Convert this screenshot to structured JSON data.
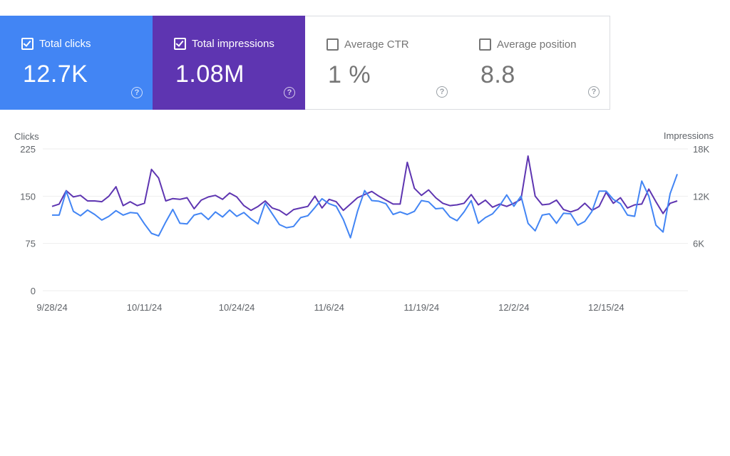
{
  "metrics": [
    {
      "key": "clicks",
      "label": "Total clicks",
      "value": "12.7K",
      "checked": true,
      "color": "#4285f4"
    },
    {
      "key": "impressions",
      "label": "Total impressions",
      "value": "1.08M",
      "checked": true,
      "color": "#5e35b1"
    },
    {
      "key": "ctr",
      "label": "Average CTR",
      "value": "1 %",
      "checked": false
    },
    {
      "key": "position",
      "label": "Average position",
      "value": "8.8",
      "checked": false
    }
  ],
  "help_glyph": "?",
  "chart_data": {
    "type": "line",
    "left_axis_title": "Clicks",
    "right_axis_title": "Impressions",
    "y_left_ticks": [
      "225",
      "150",
      "75",
      "0"
    ],
    "y_left_range": [
      0,
      225
    ],
    "y_right_ticks": [
      "18K",
      "12K",
      "6K"
    ],
    "y_right_range": [
      0,
      18000
    ],
    "x_tick_labels": [
      "9/28/24",
      "10/11/24",
      "10/24/24",
      "11/6/24",
      "11/19/24",
      "12/2/24",
      "12/15/24"
    ],
    "grid": true,
    "series": [
      {
        "name": "Clicks",
        "color": "#4285f4",
        "axis": "left",
        "values": [
          120,
          120,
          158,
          126,
          119,
          128,
          121,
          112,
          118,
          127,
          120,
          124,
          123,
          106,
          91,
          87,
          109,
          129,
          107,
          106,
          120,
          123,
          113,
          125,
          117,
          128,
          118,
          124,
          114,
          106,
          139,
          122,
          105,
          100,
          102,
          116,
          119,
          132,
          146,
          138,
          134,
          113,
          84,
          126,
          159,
          143,
          142,
          138,
          121,
          125,
          121,
          126,
          143,
          141,
          130,
          131,
          117,
          111,
          125,
          143,
          107,
          116,
          122,
          135,
          152,
          134,
          150,
          107,
          95,
          120,
          122,
          107,
          123,
          122,
          104,
          110,
          126,
          158,
          158,
          145,
          138,
          120,
          118,
          174,
          150,
          104,
          93,
          154,
          185
        ]
      },
      {
        "name": "Impressions",
        "color": "#5e35b1",
        "axis": "right",
        "values": [
          10700,
          11000,
          12700,
          11900,
          12100,
          11400,
          11400,
          11300,
          12000,
          13200,
          10800,
          11300,
          10800,
          11100,
          15400,
          14300,
          11400,
          11700,
          11600,
          11800,
          10400,
          11500,
          11900,
          12100,
          11600,
          12400,
          11900,
          10800,
          10200,
          10700,
          11400,
          10500,
          10200,
          9600,
          10300,
          10500,
          10700,
          12000,
          10500,
          11600,
          11300,
          10200,
          11000,
          11800,
          12200,
          12600,
          12000,
          11500,
          11000,
          11000,
          16300,
          13000,
          12100,
          12800,
          11800,
          11100,
          10800,
          10900,
          11100,
          12200,
          10900,
          11500,
          10600,
          11000,
          10700,
          11100,
          11600,
          17100,
          12000,
          10900,
          11000,
          11500,
          10300,
          10000,
          10300,
          11100,
          10200,
          10700,
          12500,
          11100,
          11800,
          10500,
          10900,
          11000,
          12900,
          11300,
          9800,
          11100,
          11400
        ]
      }
    ]
  }
}
